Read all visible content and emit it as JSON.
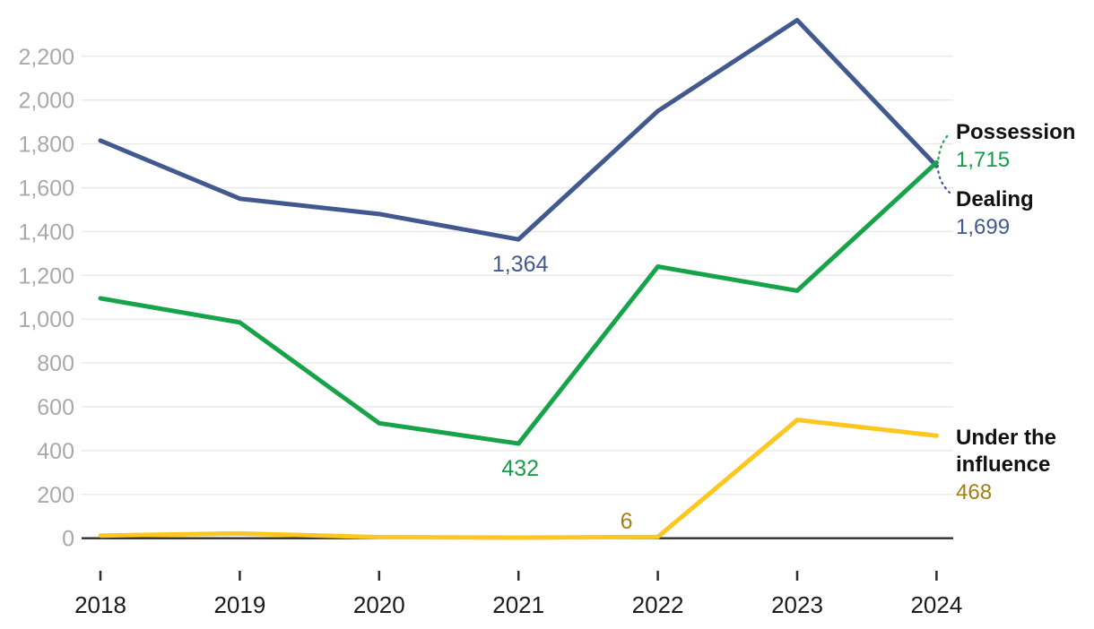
{
  "chart_data": {
    "type": "line",
    "title": "",
    "xlabel": "",
    "ylabel": "",
    "categories": [
      "2018",
      "2019",
      "2020",
      "2021",
      "2022",
      "2023",
      "2024"
    ],
    "series": [
      {
        "name": "Dealing",
        "color": "#41598E",
        "values": [
          1815,
          1550,
          1480,
          1364,
          1950,
          2365,
          1699
        ]
      },
      {
        "name": "Possession",
        "color": "#17A34A",
        "values": [
          1095,
          985,
          525,
          432,
          1240,
          1130,
          1715
        ]
      },
      {
        "name": "Under the influence",
        "color": "#FDC71F",
        "values": [
          12,
          22,
          5,
          3,
          6,
          540,
          468
        ]
      }
    ],
    "ylim": [
      0,
      2400
    ],
    "ytick_labels": [
      "0",
      "200",
      "400",
      "600",
      "800",
      "1,000",
      "1,200",
      "1,400",
      "1,600",
      "1,800",
      "2,000",
      "2,200"
    ],
    "ytick_step": 200,
    "grid": true,
    "legend_position": "end-labels-right",
    "annotations": [
      {
        "text": "1,364",
        "series": "Dealing",
        "at_x": "2021",
        "color": "#41598E"
      },
      {
        "text": "432",
        "series": "Possession",
        "at_x": "2021",
        "color": "#1B9C4C"
      },
      {
        "text": "6",
        "series": "Under the influence",
        "at_x": "2022",
        "color": "#A37E12"
      }
    ],
    "end_labels": [
      {
        "name": "Possession",
        "value": "1,715",
        "value_color": "#169A48"
      },
      {
        "name": "Dealing",
        "value": "1,699",
        "value_color": "#41598E"
      },
      {
        "name": "Under the influence",
        "value": "468",
        "value_color": "#A37E12"
      }
    ],
    "axis_colors": {
      "y_tick_label": "#A8A8AD",
      "x_tick_label": "#1A1A1A",
      "gridline": "#E8E8E9",
      "zero_line": "#2D2D2D"
    }
  }
}
